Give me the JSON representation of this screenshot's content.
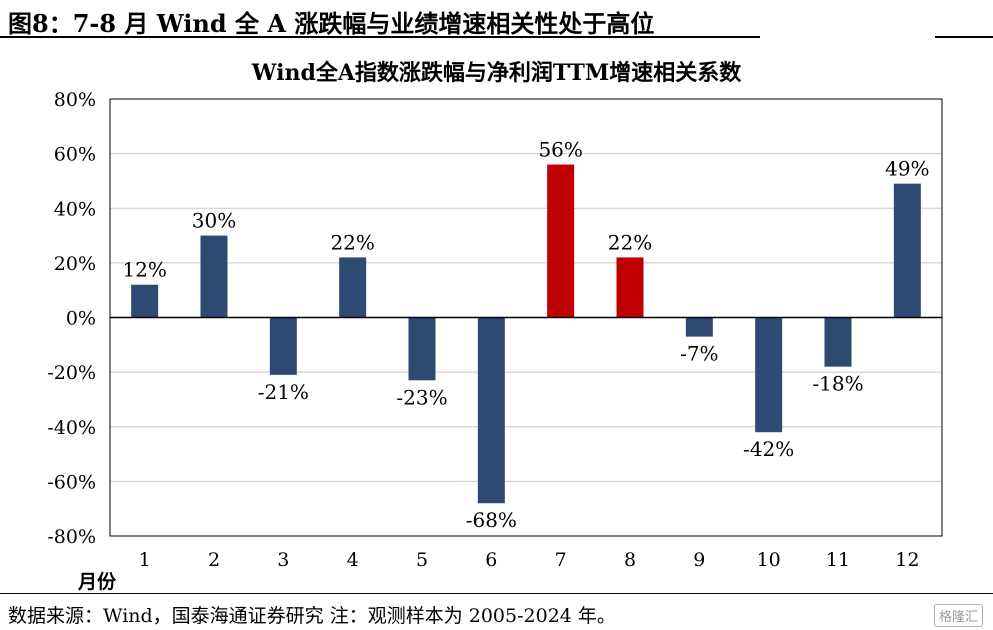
{
  "figure_title": "图8：7-8 月 Wind 全 A 涨跌幅与业绩增速相关性处于高位",
  "source_note": "数据来源：Wind，国泰海通证券研究 注：观测样本为 2005-2024 年。",
  "watermark": "格隆汇",
  "colors": {
    "default_bar": "#2e4a72",
    "highlight_bar": "#c00000",
    "axis": "#000000",
    "grid": "#c8c8c8"
  },
  "chart_data": {
    "type": "bar",
    "title": "Wind全A指数涨跌幅与净利润TTM增速相关系数",
    "xlabel": "月份",
    "ylabel": "",
    "categories": [
      "1",
      "2",
      "3",
      "4",
      "5",
      "6",
      "7",
      "8",
      "9",
      "10",
      "11",
      "12"
    ],
    "values": [
      12,
      30,
      -21,
      22,
      -23,
      -68,
      56,
      22,
      -7,
      -42,
      -18,
      49
    ],
    "data_labels": [
      "12%",
      "30%",
      "-21%",
      "22%",
      "-23%",
      "-68%",
      "56%",
      "22%",
      "-7%",
      "-42%",
      "-18%",
      "49%"
    ],
    "highlight_categories": [
      "7",
      "8"
    ],
    "yticks": [
      "80%",
      "60%",
      "40%",
      "20%",
      "0%",
      "-20%",
      "-40%",
      "-60%",
      "-80%"
    ],
    "ylim": [
      -80,
      80
    ],
    "ytick_step": 20,
    "grid": true,
    "legend": "none"
  }
}
